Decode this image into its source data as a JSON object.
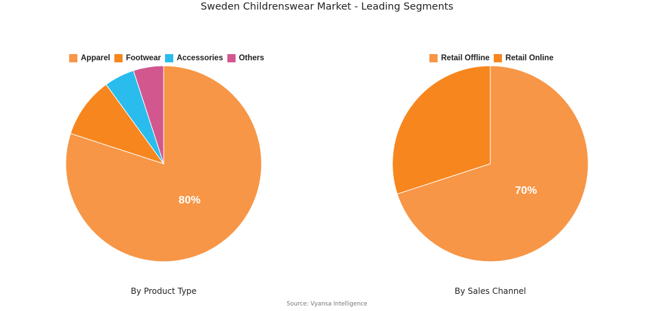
{
  "title": "Sweden Childrenswear Market - Leading Segments",
  "source": "Source: Vyansa Intelligence",
  "chart_data": [
    {
      "type": "pie",
      "title": "By Product Type",
      "categories": [
        "Apparel",
        "Footwear",
        "Accessories",
        "Others"
      ],
      "values": [
        80,
        10,
        5,
        5
      ],
      "colors": [
        "#F79646",
        "#F7861E",
        "#29BCEC",
        "#D2578F"
      ],
      "data_labels": [
        "80%",
        "",
        "",
        ""
      ],
      "legend_position": "top"
    },
    {
      "type": "pie",
      "title": "By Sales Channel",
      "categories": [
        "Retail Offline",
        "Retail Online"
      ],
      "values": [
        70,
        30
      ],
      "colors": [
        "#F79646",
        "#F7861E"
      ],
      "data_labels": [
        "70%",
        ""
      ],
      "legend_position": "top"
    }
  ]
}
